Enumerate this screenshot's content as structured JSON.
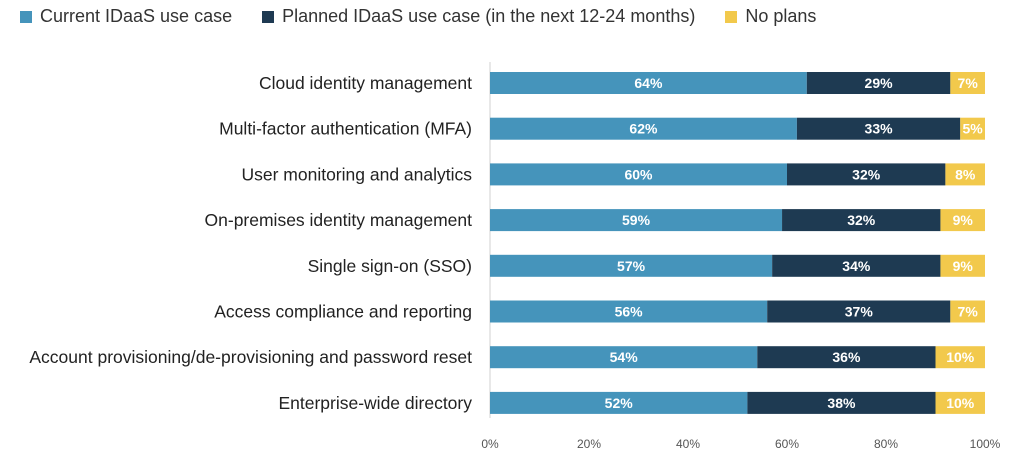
{
  "chart_data": {
    "type": "bar",
    "orientation": "horizontal",
    "stacked": true,
    "legend_position": "top-left",
    "xlim": [
      0,
      100
    ],
    "x_ticks": [
      "0%",
      "20%",
      "40%",
      "60%",
      "80%",
      "100%"
    ],
    "categories": [
      "Cloud identity management",
      "Multi-factor authentication (MFA)",
      "User monitoring and analytics",
      "On-premises identity management",
      "Single sign-on (SSO)",
      "Access compliance and reporting",
      "Account provisioning/de-provisioning and password reset",
      "Enterprise-wide directory"
    ],
    "series": [
      {
        "name": "Current IDaaS use case",
        "color": "#4594bb",
        "values": [
          64,
          62,
          60,
          59,
          57,
          56,
          54,
          52
        ]
      },
      {
        "name": "Planned IDaaS use case (in the next 12-24 months)",
        "color": "#1e3a52",
        "values": [
          29,
          33,
          32,
          32,
          34,
          37,
          36,
          38
        ]
      },
      {
        "name": "No plans",
        "color": "#f2c94c",
        "values": [
          7,
          5,
          8,
          9,
          9,
          7,
          10,
          10
        ]
      }
    ]
  }
}
